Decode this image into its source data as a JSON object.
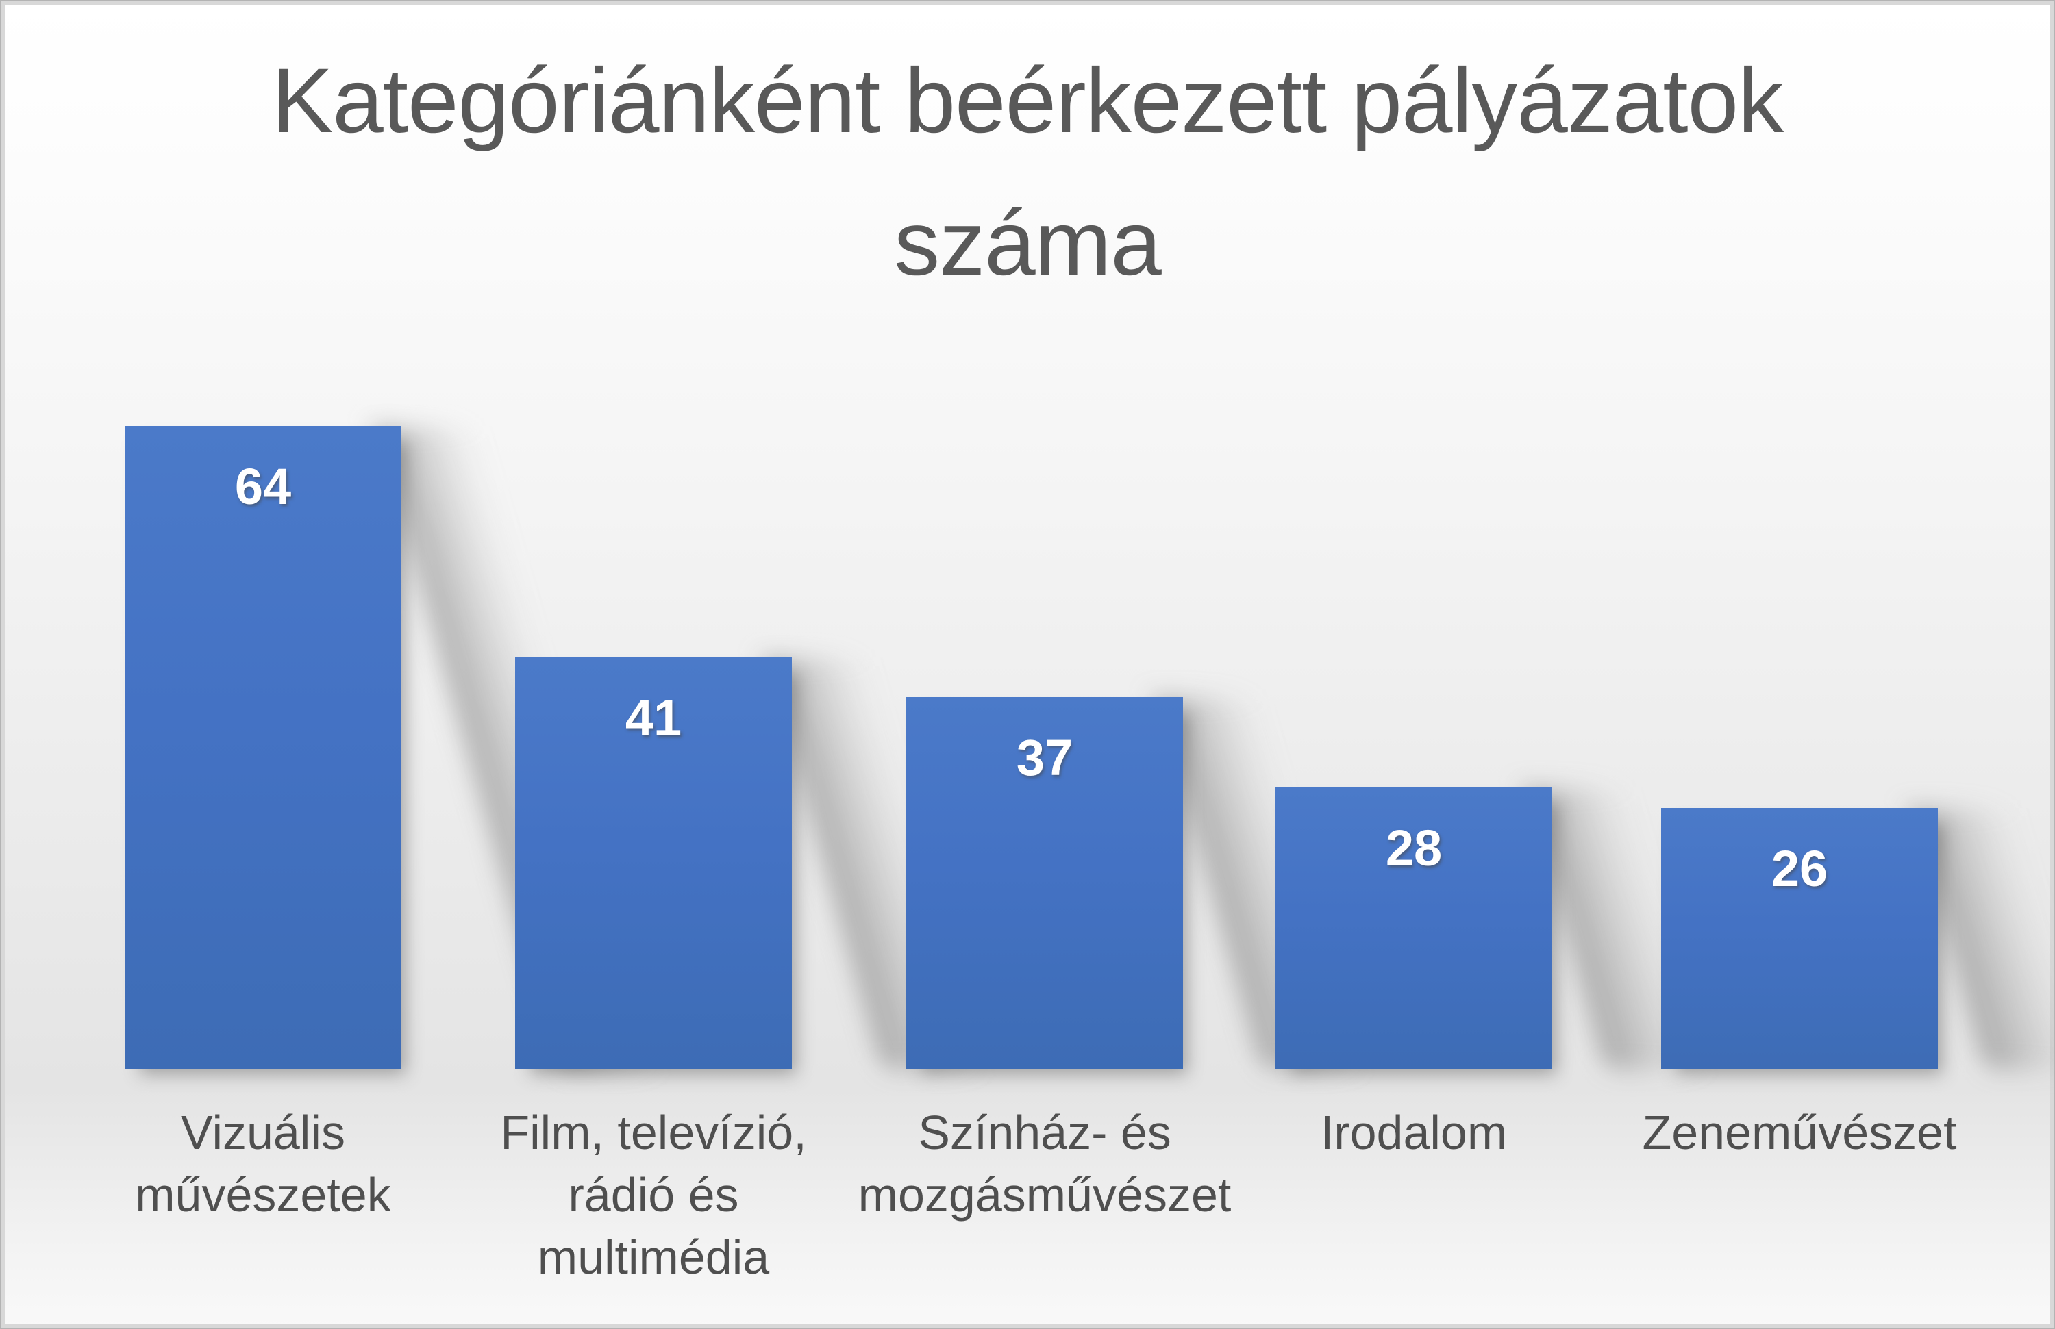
{
  "chart_data": {
    "type": "bar",
    "title": "Kategóriánként beérkezett pályázatok száma",
    "categories": [
      "Vizuális művészetek",
      "Film, televízió, rádió és multimédia",
      "Színház- és mozgásművészet",
      "Irodalom",
      "Zeneművészet"
    ],
    "category_lines": [
      [
        "Vizuális",
        "művészetek"
      ],
      [
        "Film, televízió,",
        "rádió és",
        "multimédia"
      ],
      [
        "Színház- és",
        "mozgásművészet"
      ],
      [
        "Irodalom"
      ],
      [
        "Zeneművészet"
      ]
    ],
    "values": [
      64,
      41,
      37,
      28,
      26
    ],
    "data_labels": [
      "64",
      "41",
      "37",
      "28",
      "26"
    ],
    "xlabel": "",
    "ylabel": "",
    "ylim": [
      0,
      64
    ],
    "grid": false,
    "legend": false,
    "axes_visible": false,
    "data_label_position": "inside-end",
    "colors": {
      "bar": "#4472C4",
      "value_label": "#ffffff",
      "title_text": "#595959",
      "category_text": "#4f4f4f",
      "background_top": "#ffffff",
      "background_mid": "#e4e4e4",
      "frame": "#d8d8d8"
    }
  }
}
